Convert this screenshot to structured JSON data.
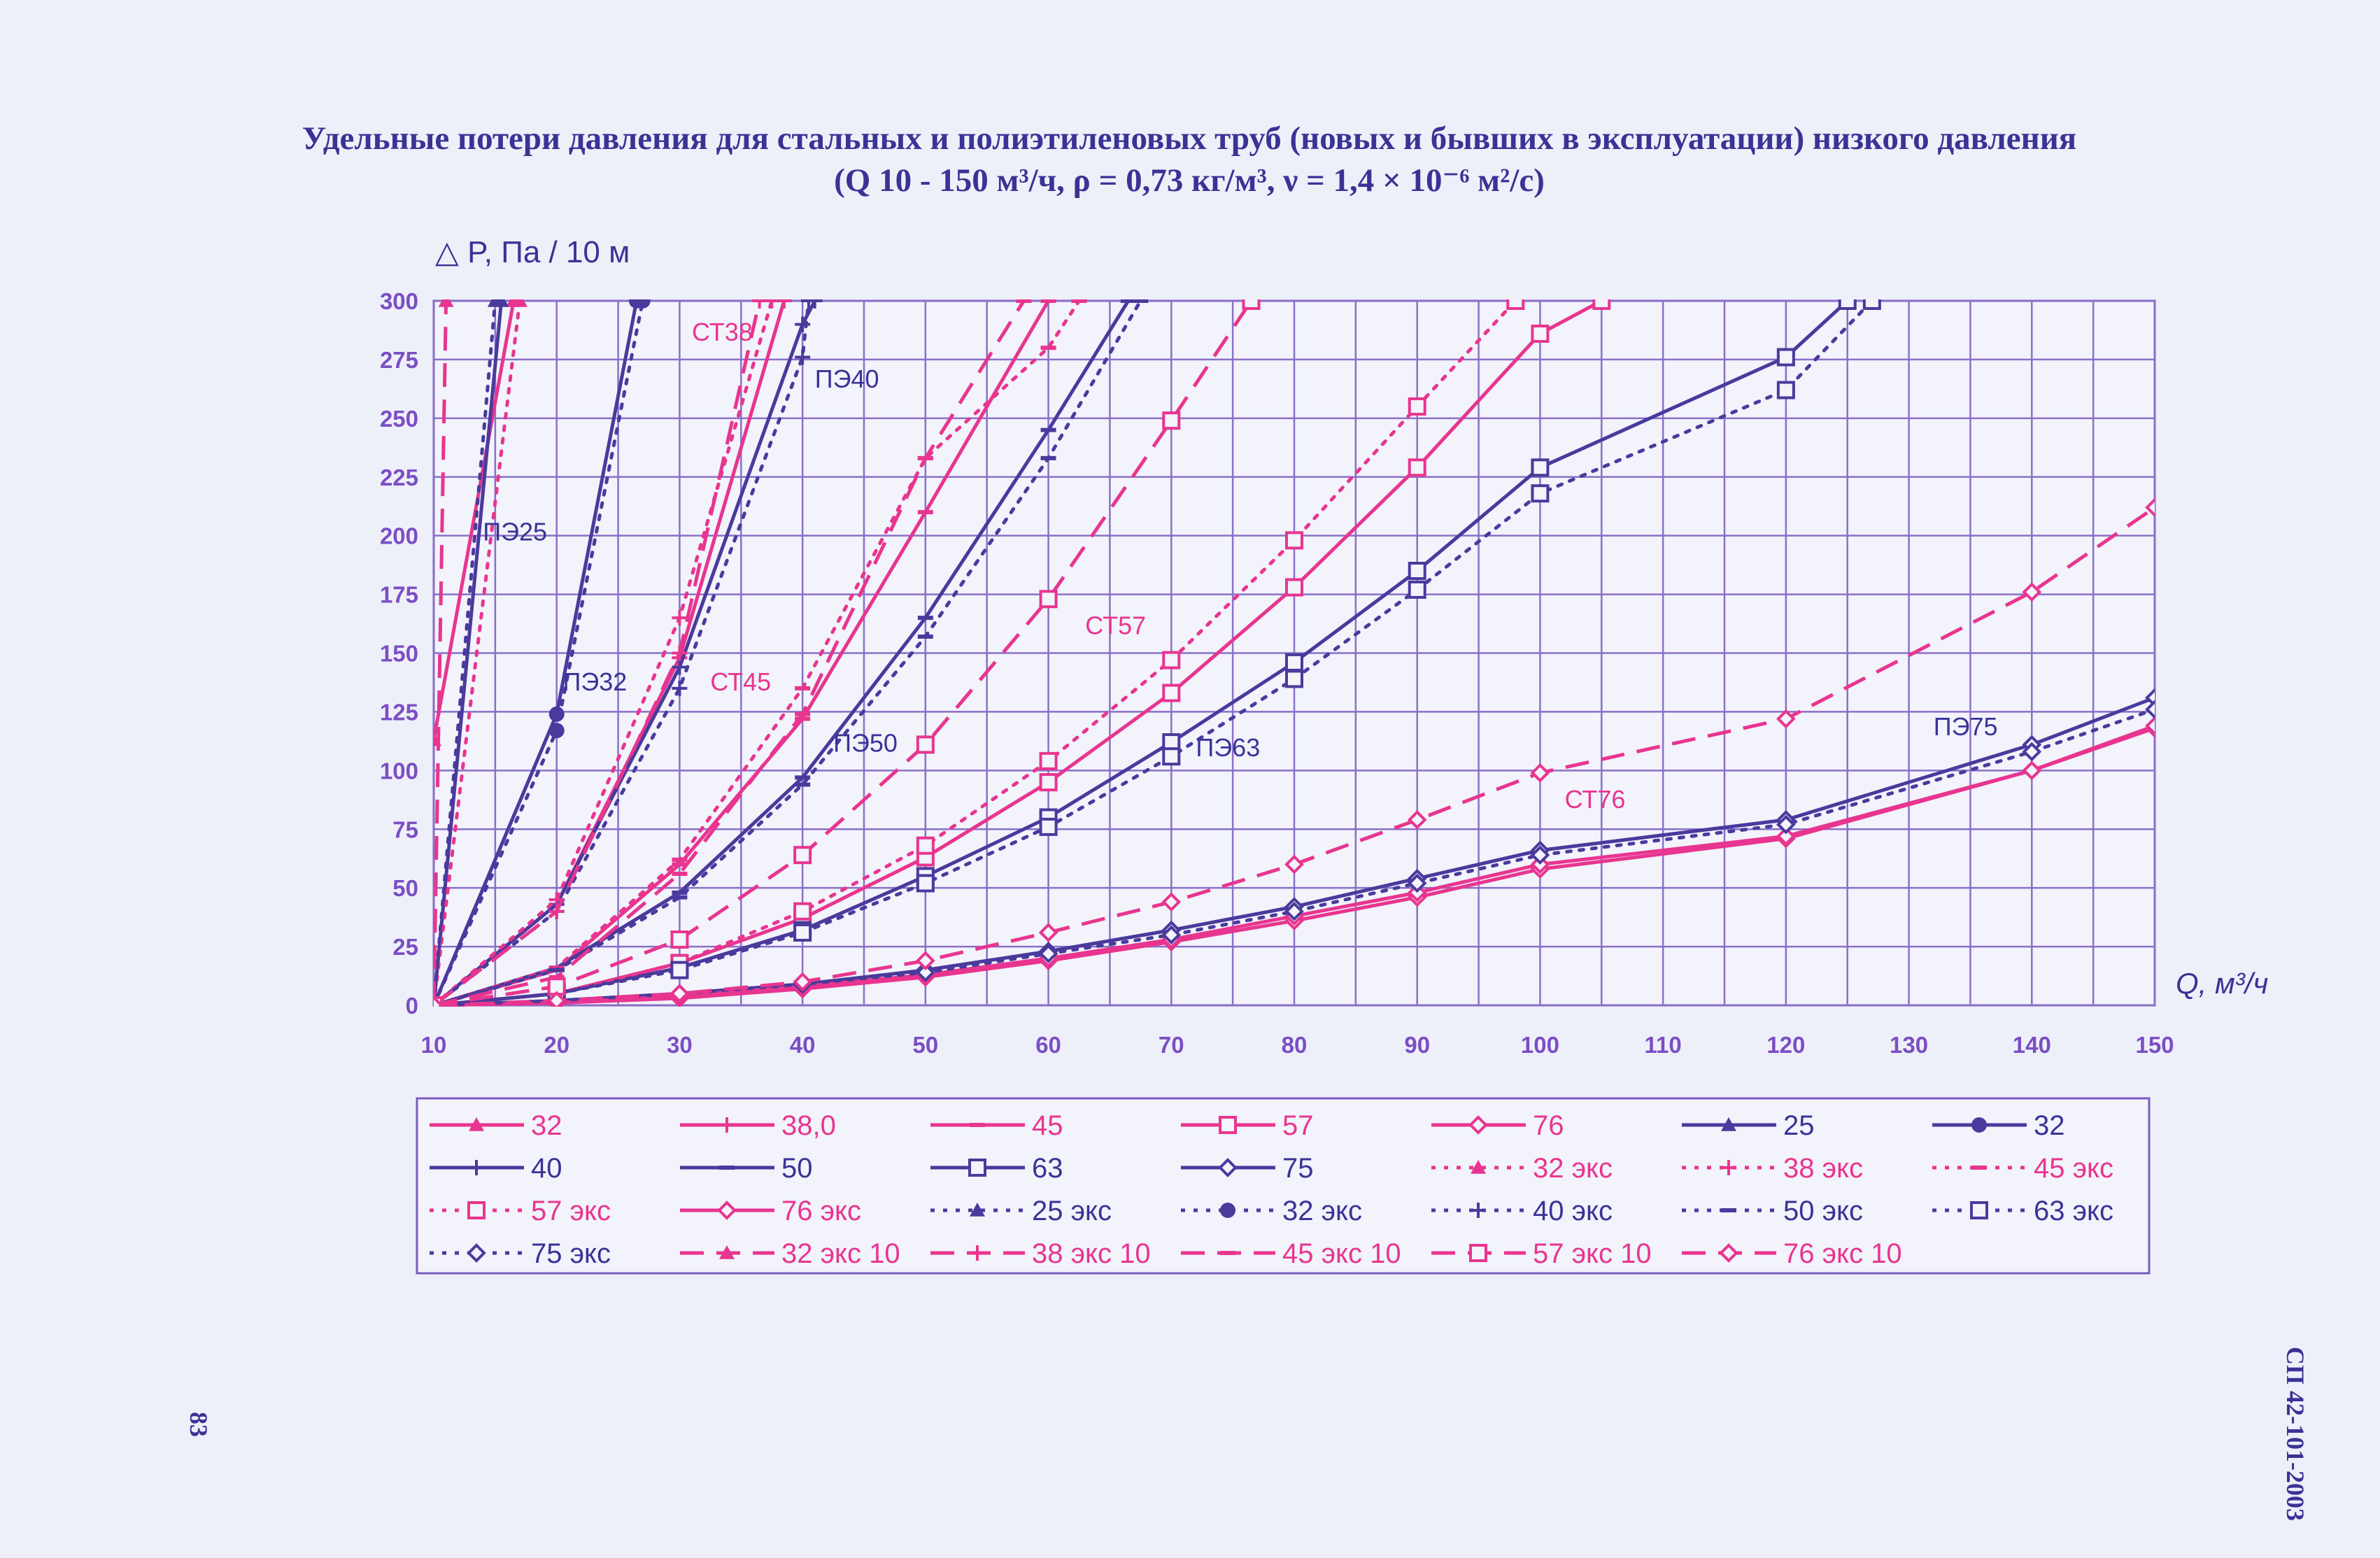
{
  "title": {
    "line1": "Удельные потери давления для стальных и полиэтиленовых труб (новых и бывших в эксплуатации) низкого давления",
    "line2": "(Q 10 - 150 м³/ч, ρ = 0,73 кг/м³, ν = 1,4 × 10⁻⁶ м²/с)"
  },
  "side_text": "СП 42-101-2003",
  "page_number": "83",
  "colors": {
    "steel": "#e8358f",
    "pe": "#4a3a9c",
    "grid": "#8b6fc7",
    "text": "#3a3396"
  },
  "chart_data": {
    "type": "line",
    "title": "Удельные потери давления для стальных и полиэтиленовых труб (новых и бывших в эксплуатации) низкого давления",
    "ylabel": "△ P, Па / 10 м",
    "xlabel": "Q, м³/ч",
    "xlim": [
      10,
      150
    ],
    "ylim": [
      0,
      300
    ],
    "xticks": [
      10,
      20,
      30,
      40,
      50,
      60,
      70,
      80,
      90,
      100,
      110,
      120,
      130,
      140,
      150
    ],
    "yticks": [
      0,
      25,
      50,
      75,
      100,
      125,
      150,
      175,
      200,
      225,
      250,
      275,
      300
    ],
    "grid": true,
    "legend_position": "bottom",
    "annotations": [
      {
        "text": "СТ38",
        "x": 31,
        "y": 283,
        "color": "#e8358f"
      },
      {
        "text": "ПЭ40",
        "x": 41,
        "y": 263,
        "color": "#3a3396"
      },
      {
        "text": "ПЭ25",
        "x": 14,
        "y": 198,
        "color": "#3a3396"
      },
      {
        "text": "ПЭ32",
        "x": 20.5,
        "y": 134,
        "color": "#3a3396"
      },
      {
        "text": "СТ45",
        "x": 32.5,
        "y": 134,
        "color": "#e8358f"
      },
      {
        "text": "ПЭ50",
        "x": 42.5,
        "y": 108,
        "color": "#3a3396"
      },
      {
        "text": "СТ57",
        "x": 63,
        "y": 158,
        "color": "#e8358f"
      },
      {
        "text": "ПЭ63",
        "x": 72,
        "y": 106,
        "color": "#3a3396"
      },
      {
        "text": "СТ76",
        "x": 102,
        "y": 84,
        "color": "#e8358f"
      },
      {
        "text": "ПЭ75",
        "x": 132,
        "y": 115,
        "color": "#3a3396"
      }
    ],
    "series": [
      {
        "name": "32",
        "color": "#e8358f",
        "dash": "solid",
        "marker": "triangle",
        "x": [
          10,
          16.5
        ],
        "y": [
          113,
          300
        ]
      },
      {
        "name": "38,0",
        "color": "#e8358f",
        "dash": "solid",
        "marker": "plus",
        "x": [
          10,
          20,
          30,
          38.5
        ],
        "y": [
          0,
          43,
          148,
          300
        ]
      },
      {
        "name": "45",
        "color": "#e8358f",
        "dash": "solid",
        "marker": "dash",
        "x": [
          10,
          20,
          30,
          40,
          50,
          60,
          66
        ],
        "y": [
          0,
          15,
          60,
          122,
          210,
          300,
          345
        ]
      },
      {
        "name": "57",
        "color": "#e8358f",
        "dash": "solid",
        "marker": "square",
        "x": [
          10,
          20,
          30,
          40,
          50,
          60,
          70,
          80,
          90,
          100,
          105
        ],
        "y": [
          0,
          5,
          18,
          37,
          63,
          95,
          133,
          178,
          229,
          286,
          300
        ]
      },
      {
        "name": "76",
        "color": "#e8358f",
        "dash": "solid",
        "marker": "diamond",
        "x": [
          10,
          20,
          30,
          40,
          50,
          60,
          70,
          80,
          90,
          100,
          120,
          140,
          150
        ],
        "y": [
          0,
          1,
          3,
          7,
          12,
          19,
          27,
          36,
          46,
          58,
          71,
          100,
          118
        ]
      },
      {
        "name": "25",
        "color": "#4a3a9c",
        "dash": "solid",
        "marker": "triangle",
        "x": [
          10,
          15.5
        ],
        "y": [
          0,
          300
        ]
      },
      {
        "name": "32",
        "color": "#4a3a9c",
        "dash": "solid",
        "marker": "circle",
        "x": [
          10,
          20,
          26.5
        ],
        "y": [
          0,
          124,
          300
        ]
      },
      {
        "name": "40",
        "color": "#4a3a9c",
        "dash": "solid",
        "marker": "plus",
        "x": [
          10,
          20,
          30,
          40,
          41
        ],
        "y": [
          0,
          43,
          144,
          290,
          300
        ]
      },
      {
        "name": "50",
        "color": "#4a3a9c",
        "dash": "solid",
        "marker": "dash",
        "x": [
          10,
          20,
          30,
          40,
          50,
          60,
          66.5
        ],
        "y": [
          0,
          16,
          48,
          97,
          165,
          245,
          300
        ]
      },
      {
        "name": "63",
        "color": "#4a3a9c",
        "dash": "solid",
        "marker": "square",
        "x": [
          10,
          20,
          30,
          40,
          50,
          60,
          70,
          80,
          90,
          100,
          120,
          125
        ],
        "y": [
          0,
          5,
          16,
          32,
          55,
          80,
          112,
          146,
          185,
          229,
          276,
          300
        ]
      },
      {
        "name": "75",
        "color": "#4a3a9c",
        "dash": "solid",
        "marker": "diamond",
        "x": [
          10,
          20,
          30,
          40,
          50,
          60,
          70,
          80,
          90,
          100,
          120,
          140,
          150
        ],
        "y": [
          0,
          2,
          5,
          9,
          15,
          23,
          32,
          42,
          54,
          66,
          79,
          111,
          131
        ]
      },
      {
        "name": "32 экс",
        "color": "#e8358f",
        "dash": "dot",
        "marker": "triangle",
        "x": [
          10,
          17
        ],
        "y": [
          0,
          300
        ]
      },
      {
        "name": "38 экс",
        "color": "#e8358f",
        "dash": "dot",
        "marker": "plus",
        "x": [
          10,
          20,
          30,
          37.5
        ],
        "y": [
          0,
          45,
          165,
          300
        ]
      },
      {
        "name": "45 экс",
        "color": "#e8358f",
        "dash": "dot",
        "marker": "dash",
        "x": [
          10,
          20,
          30,
          40,
          50,
          60,
          62.5
        ],
        "y": [
          0,
          16,
          62,
          135,
          233,
          280,
          300
        ]
      },
      {
        "name": "57 экс",
        "color": "#e8358f",
        "dash": "dot",
        "marker": "square",
        "x": [
          10,
          20,
          30,
          40,
          50,
          60,
          70,
          80,
          90,
          98
        ],
        "y": [
          0,
          5,
          18,
          40,
          68,
          104,
          147,
          198,
          255,
          300
        ]
      },
      {
        "name": "76 экс",
        "color": "#e8358f",
        "dash": "solid",
        "marker": "diamond",
        "x": [
          10,
          20,
          30,
          40,
          50,
          60,
          70,
          80,
          90,
          100,
          120,
          140,
          150
        ],
        "y": [
          0,
          1,
          4,
          8,
          13,
          20,
          28,
          38,
          48,
          60,
          72,
          100,
          119
        ]
      },
      {
        "name": "25 экс",
        "color": "#4a3a9c",
        "dash": "dot",
        "marker": "triangle",
        "x": [
          10,
          15
        ],
        "y": [
          0,
          300
        ]
      },
      {
        "name": "32 экс",
        "color": "#4a3a9c",
        "dash": "dot",
        "marker": "circle",
        "x": [
          10,
          20,
          27
        ],
        "y": [
          0,
          117,
          300
        ]
      },
      {
        "name": "40 экс",
        "color": "#4a3a9c",
        "dash": "dot",
        "marker": "plus",
        "x": [
          10,
          20,
          30,
          40,
          40.5
        ],
        "y": [
          0,
          40,
          135,
          276,
          300
        ]
      },
      {
        "name": "50 экс",
        "color": "#4a3a9c",
        "dash": "dot",
        "marker": "dash",
        "x": [
          10,
          20,
          30,
          40,
          50,
          60,
          67.5
        ],
        "y": [
          0,
          15,
          46,
          94,
          157,
          233,
          300
        ]
      },
      {
        "name": "63 экс",
        "color": "#4a3a9c",
        "dash": "dot",
        "marker": "square",
        "x": [
          10,
          20,
          30,
          40,
          50,
          60,
          70,
          80,
          90,
          100,
          120,
          127
        ],
        "y": [
          0,
          5,
          15,
          31,
          52,
          76,
          106,
          139,
          177,
          218,
          262,
          300
        ]
      },
      {
        "name": "75 экс",
        "color": "#4a3a9c",
        "dash": "dot",
        "marker": "diamond",
        "x": [
          10,
          20,
          30,
          40,
          50,
          60,
          70,
          80,
          90,
          100,
          120,
          140,
          150
        ],
        "y": [
          0,
          2,
          5,
          9,
          14,
          22,
          30,
          40,
          52,
          64,
          77,
          108,
          126
        ]
      },
      {
        "name": "32 экс 10",
        "color": "#e8358f",
        "dash": "dash",
        "marker": "triangle",
        "x": [
          10,
          11
        ],
        "y": [
          0,
          300
        ]
      },
      {
        "name": "38 экс 10",
        "color": "#e8358f",
        "dash": "dash",
        "marker": "plus",
        "x": [
          10,
          20,
          30,
          36.5
        ],
        "y": [
          0,
          40,
          150,
          300
        ]
      },
      {
        "name": "45 экс 10",
        "color": "#e8358f",
        "dash": "dash",
        "marker": "dash",
        "x": [
          10,
          20,
          30,
          40,
          50,
          58
        ],
        "y": [
          0,
          12,
          56,
          124,
          233,
          300
        ]
      },
      {
        "name": "57 экс 10",
        "color": "#e8358f",
        "dash": "dash",
        "marker": "square",
        "x": [
          10,
          20,
          30,
          40,
          50,
          60,
          70,
          76.5
        ],
        "y": [
          0,
          8,
          28,
          64,
          111,
          173,
          249,
          300
        ]
      },
      {
        "name": "76 экс 10",
        "color": "#e8358f",
        "dash": "dash",
        "marker": "diamond",
        "x": [
          10,
          20,
          30,
          40,
          50,
          60,
          70,
          80,
          90,
          100,
          120,
          140,
          150
        ],
        "y": [
          0,
          2,
          5,
          10,
          19,
          31,
          44,
          60,
          79,
          99,
          122,
          176,
          212
        ]
      }
    ]
  }
}
